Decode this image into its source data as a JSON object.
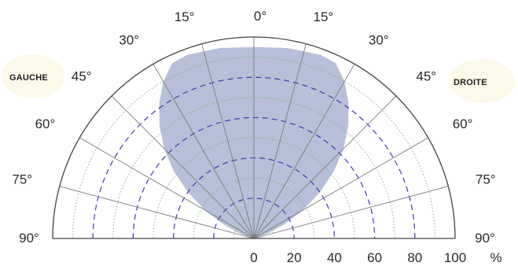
{
  "chart_data": {
    "type": "polar-semicircle",
    "title": "",
    "side_labels": {
      "left": "GAUCHE",
      "right": "DROITE"
    },
    "angle_ticks": [
      {
        "deg": 0,
        "left": "0°",
        "right": ""
      },
      {
        "deg": 15,
        "left": "15°",
        "right": "15°"
      },
      {
        "deg": 30,
        "left": "30°",
        "right": "30°"
      },
      {
        "deg": 45,
        "left": "45°",
        "right": "45°"
      },
      {
        "deg": 60,
        "left": "60°",
        "right": "60°"
      },
      {
        "deg": 75,
        "left": "75°",
        "right": "75°"
      },
      {
        "deg": 90,
        "left": "90°",
        "right": "90°"
      }
    ],
    "radial_ticks": [
      "0",
      "20",
      "40",
      "60",
      "80",
      "100"
    ],
    "radial_unit": "%",
    "r_range": [
      0,
      100
    ],
    "grid": {
      "dashed_rings": [
        20,
        40,
        60,
        80
      ],
      "dotted_rings": [
        10,
        30,
        50,
        70,
        90
      ],
      "spoke_step_deg": 15
    },
    "series": [
      {
        "fill": "#b7c0d8",
        "points": [
          {
            "angle": 0,
            "r": 95
          },
          {
            "angle": 10,
            "r": 96
          },
          {
            "angle": 20,
            "r": 97
          },
          {
            "angle": 25,
            "r": 96
          },
          {
            "angle": 30,
            "r": 90
          },
          {
            "angle": 35,
            "r": 82
          },
          {
            "angle": 40,
            "r": 73
          },
          {
            "angle": 45,
            "r": 63
          },
          {
            "angle": 50,
            "r": 52
          },
          {
            "angle": 55,
            "r": 40
          },
          {
            "angle": 60,
            "r": 28
          },
          {
            "angle": 65,
            "r": 17
          },
          {
            "angle": 70,
            "r": 8
          },
          {
            "angle": 75,
            "r": 3
          },
          {
            "angle": 80,
            "r": 0
          }
        ]
      }
    ],
    "colors": {
      "axis": "#444444",
      "spoke": "#7a7a7a",
      "dashed_ring": "#3b3bb0",
      "dotted_ring": "#66b866",
      "text": "#2a2a2a",
      "side_badge": "#fbfae8"
    }
  }
}
